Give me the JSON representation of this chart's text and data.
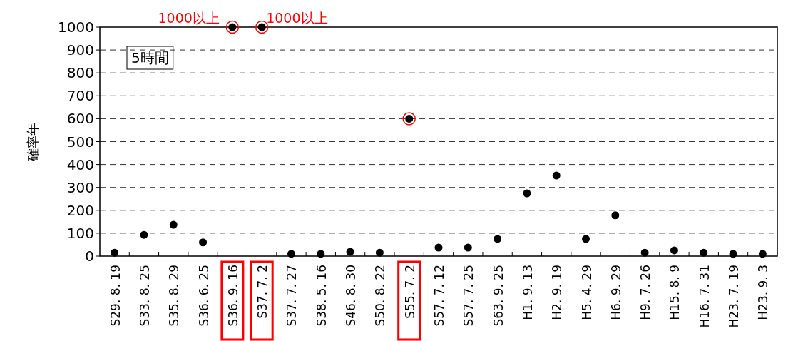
{
  "chart_data": {
    "type": "scatter",
    "ylabel": "確率年",
    "annotations": [
      "5時間",
      {
        "text": "1000以上",
        "x": "S36. 9. 16",
        "y": 1000
      },
      {
        "text": "1000以上",
        "x": "S37. 7. 2",
        "y": 1000
      }
    ],
    "categories": [
      "S29. 8. 19",
      "S33. 8. 25",
      "S35. 8. 29",
      "S36. 6. 25",
      "S36. 9. 16",
      "S37. 7. 2",
      "S37. 7. 27",
      "S38. 5. 16",
      "S46. 8. 30",
      "S50. 8. 22",
      "S55. 7. 2",
      "S57. 7. 12",
      "S57. 7. 25",
      "S63. 9. 25",
      "H1. 9. 13",
      "H2. 9. 19",
      "H5. 4. 29",
      "H6. 9. 29",
      "H9. 7. 26",
      "H15. 8. 9",
      "H16. 7. 31",
      "H23. 7. 19",
      "H23. 9. 3"
    ],
    "series": [
      {
        "color": "#000000",
        "marker": "circle",
        "values": [
          15,
          93,
          137,
          60,
          1000,
          1000,
          10,
          10,
          19,
          15,
          600,
          37,
          37,
          75,
          274,
          352,
          75,
          178,
          15,
          25,
          15,
          10,
          10
        ]
      },
      {
        "color": "#ff0000",
        "values": [
          null,
          null,
          null,
          null,
          1000,
          1000,
          null,
          null,
          null,
          null,
          600,
          null,
          null,
          null,
          null,
          null,
          null,
          null,
          null,
          null,
          null,
          null,
          null
        ]
      }
    ],
    "ylim": [
      0,
      1000
    ],
    "yticks": [
      0,
      100,
      200,
      300,
      400,
      500,
      600,
      700,
      800,
      900,
      1000
    ],
    "grid": "y"
  }
}
